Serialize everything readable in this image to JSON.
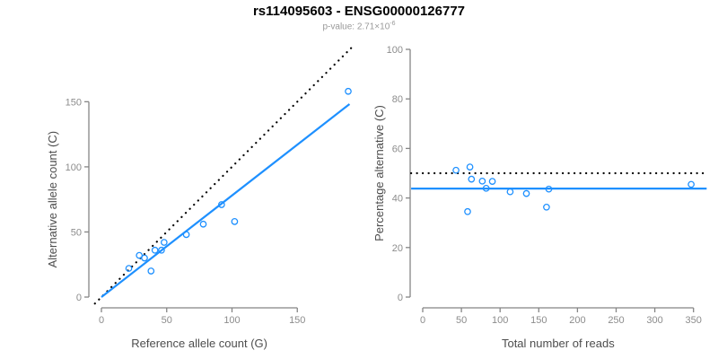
{
  "header": {
    "title": "rs114095603 - ENSG00000126777",
    "subtitle_prefix": "p-value: 2.71×10",
    "subtitle_exponent": "-6"
  },
  "colors": {
    "accent_blue": "#1E90FF",
    "dotted_line": "#000000",
    "axis_stroke": "#858585",
    "tick_label": "#8c8c8c",
    "axis_title": "#4d4d4d",
    "title_color": "#000000",
    "subtitle_color": "#999999"
  },
  "chart_data": [
    {
      "type": "scatter",
      "panel": "left",
      "xlabel": "Reference allele count (G)",
      "ylabel": "Alternative allele count (C)",
      "xlim": [
        0,
        195
      ],
      "ylim": [
        0,
        192
      ],
      "xticks": [
        0,
        50,
        100,
        150
      ],
      "yticks": [
        0,
        50,
        100,
        150
      ],
      "grid": false,
      "points": [
        [
          21,
          22
        ],
        [
          29,
          32
        ],
        [
          33,
          30
        ],
        [
          38,
          20
        ],
        [
          41,
          36
        ],
        [
          46,
          36
        ],
        [
          48,
          42
        ],
        [
          65,
          48
        ],
        [
          78,
          56
        ],
        [
          92,
          71
        ],
        [
          102,
          58
        ],
        [
          189,
          158
        ]
      ],
      "lines": [
        {
          "name": "identity-line",
          "style": "dotted",
          "color": "#000000",
          "slope": 1,
          "intercept": 0,
          "x_range": [
            -5,
            192
          ]
        },
        {
          "name": "fit-line",
          "style": "solid",
          "color": "#1E90FF",
          "slope": 0.78,
          "intercept": 0,
          "x_range": [
            0,
            190
          ]
        }
      ]
    },
    {
      "type": "scatter",
      "panel": "right",
      "xlabel": "Total number of reads",
      "ylabel": "Percentage alternative (C)",
      "xlim": [
        0,
        365
      ],
      "ylim": [
        0,
        100
      ],
      "xticks": [
        0,
        50,
        100,
        150,
        200,
        250,
        300,
        350
      ],
      "yticks": [
        0,
        20,
        40,
        60,
        80,
        100
      ],
      "grid": false,
      "points": [
        [
          43,
          51.2
        ],
        [
          58,
          34.5
        ],
        [
          61,
          52.5
        ],
        [
          63,
          47.6
        ],
        [
          77,
          46.8
        ],
        [
          82,
          43.9
        ],
        [
          90,
          46.7
        ],
        [
          113,
          42.5
        ],
        [
          134,
          41.8
        ],
        [
          160,
          36.3
        ],
        [
          163,
          43.6
        ],
        [
          347,
          45.5
        ]
      ],
      "lines": [
        {
          "name": "null-50pct-line",
          "style": "dotted",
          "color": "#000000",
          "y": 50,
          "x_range": [
            -15,
            367
          ]
        },
        {
          "name": "fit-line",
          "style": "solid",
          "color": "#1E90FF",
          "y": 43.8,
          "x_range": [
            -15,
            367
          ]
        }
      ]
    }
  ]
}
